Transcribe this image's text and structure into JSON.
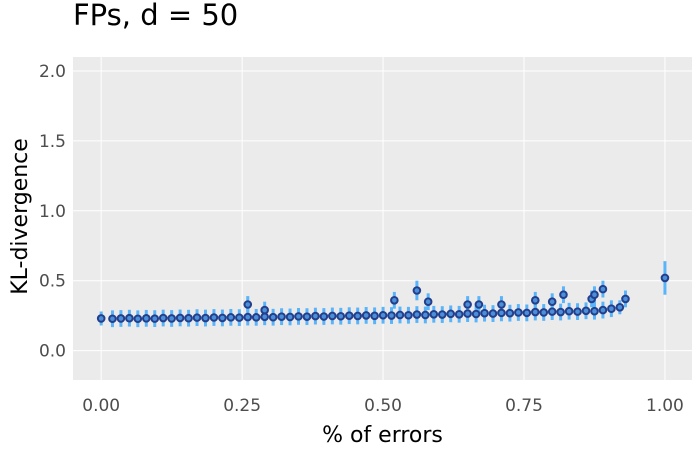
{
  "chart_data": {
    "type": "scatter",
    "title": "FPs, d = 50",
    "xlabel": "% of errors",
    "ylabel": "KL-divergence",
    "xlim": [
      -0.05,
      1.048
    ],
    "ylim": [
      -0.21,
      2.1
    ],
    "xticks": [
      "0.00",
      "0.25",
      "0.50",
      "0.75",
      "1.00"
    ],
    "yticks": [
      "0.0",
      "0.5",
      "1.0",
      "1.5",
      "2.0"
    ],
    "grid": true,
    "error_bars": true,
    "colors": {
      "panel": "#ebebeb",
      "grid": "#ffffff",
      "error_bar": "#5ab4fa",
      "point_stroke": "#233f8c",
      "point_fill": "#4a8fd8"
    },
    "points": [
      [
        0.0,
        0.23,
        0.05
      ],
      [
        0.02,
        0.228,
        0.06
      ],
      [
        0.035,
        0.23,
        0.06
      ],
      [
        0.05,
        0.232,
        0.06
      ],
      [
        0.065,
        0.228,
        0.06
      ],
      [
        0.08,
        0.231,
        0.06
      ],
      [
        0.095,
        0.229,
        0.06
      ],
      [
        0.11,
        0.233,
        0.06
      ],
      [
        0.125,
        0.23,
        0.06
      ],
      [
        0.14,
        0.234,
        0.06
      ],
      [
        0.155,
        0.232,
        0.06
      ],
      [
        0.17,
        0.236,
        0.06
      ],
      [
        0.185,
        0.233,
        0.06
      ],
      [
        0.2,
        0.237,
        0.06
      ],
      [
        0.215,
        0.234,
        0.06
      ],
      [
        0.23,
        0.238,
        0.06
      ],
      [
        0.245,
        0.236,
        0.06
      ],
      [
        0.26,
        0.24,
        0.06
      ],
      [
        0.275,
        0.238,
        0.06
      ],
      [
        0.29,
        0.242,
        0.06
      ],
      [
        0.305,
        0.239,
        0.06
      ],
      [
        0.32,
        0.243,
        0.06
      ],
      [
        0.335,
        0.241,
        0.06
      ],
      [
        0.35,
        0.245,
        0.06
      ],
      [
        0.365,
        0.243,
        0.06
      ],
      [
        0.38,
        0.247,
        0.06
      ],
      [
        0.395,
        0.244,
        0.06
      ],
      [
        0.41,
        0.248,
        0.06
      ],
      [
        0.425,
        0.246,
        0.06
      ],
      [
        0.44,
        0.25,
        0.06
      ],
      [
        0.455,
        0.248,
        0.06
      ],
      [
        0.47,
        0.252,
        0.06
      ],
      [
        0.485,
        0.249,
        0.06
      ],
      [
        0.5,
        0.253,
        0.06
      ],
      [
        0.515,
        0.251,
        0.06
      ],
      [
        0.53,
        0.255,
        0.06
      ],
      [
        0.545,
        0.253,
        0.06
      ],
      [
        0.56,
        0.258,
        0.06
      ],
      [
        0.575,
        0.255,
        0.06
      ],
      [
        0.59,
        0.26,
        0.06
      ],
      [
        0.605,
        0.258,
        0.06
      ],
      [
        0.62,
        0.263,
        0.06
      ],
      [
        0.635,
        0.26,
        0.06
      ],
      [
        0.65,
        0.265,
        0.06
      ],
      [
        0.665,
        0.262,
        0.06
      ],
      [
        0.68,
        0.268,
        0.06
      ],
      [
        0.695,
        0.265,
        0.06
      ],
      [
        0.71,
        0.27,
        0.06
      ],
      [
        0.725,
        0.268,
        0.06
      ],
      [
        0.74,
        0.273,
        0.06
      ],
      [
        0.755,
        0.27,
        0.06
      ],
      [
        0.77,
        0.276,
        0.06
      ],
      [
        0.785,
        0.273,
        0.06
      ],
      [
        0.8,
        0.279,
        0.06
      ],
      [
        0.815,
        0.276,
        0.06
      ],
      [
        0.83,
        0.282,
        0.06
      ],
      [
        0.845,
        0.279,
        0.06
      ],
      [
        0.86,
        0.285,
        0.06
      ],
      [
        0.875,
        0.282,
        0.06
      ],
      [
        0.89,
        0.29,
        0.06
      ],
      [
        0.905,
        0.3,
        0.06
      ],
      [
        0.92,
        0.31,
        0.05
      ],
      [
        0.26,
        0.33,
        0.06
      ],
      [
        0.29,
        0.29,
        0.06
      ],
      [
        0.52,
        0.36,
        0.06
      ],
      [
        0.56,
        0.43,
        0.07
      ],
      [
        0.58,
        0.35,
        0.06
      ],
      [
        0.65,
        0.33,
        0.06
      ],
      [
        0.67,
        0.33,
        0.06
      ],
      [
        0.71,
        0.33,
        0.06
      ],
      [
        0.77,
        0.36,
        0.06
      ],
      [
        0.8,
        0.35,
        0.06
      ],
      [
        0.82,
        0.4,
        0.06
      ],
      [
        0.87,
        0.37,
        0.06
      ],
      [
        0.875,
        0.4,
        0.06
      ],
      [
        0.89,
        0.44,
        0.06
      ],
      [
        0.93,
        0.37,
        0.06
      ],
      [
        1.0,
        0.52,
        0.12
      ]
    ]
  }
}
